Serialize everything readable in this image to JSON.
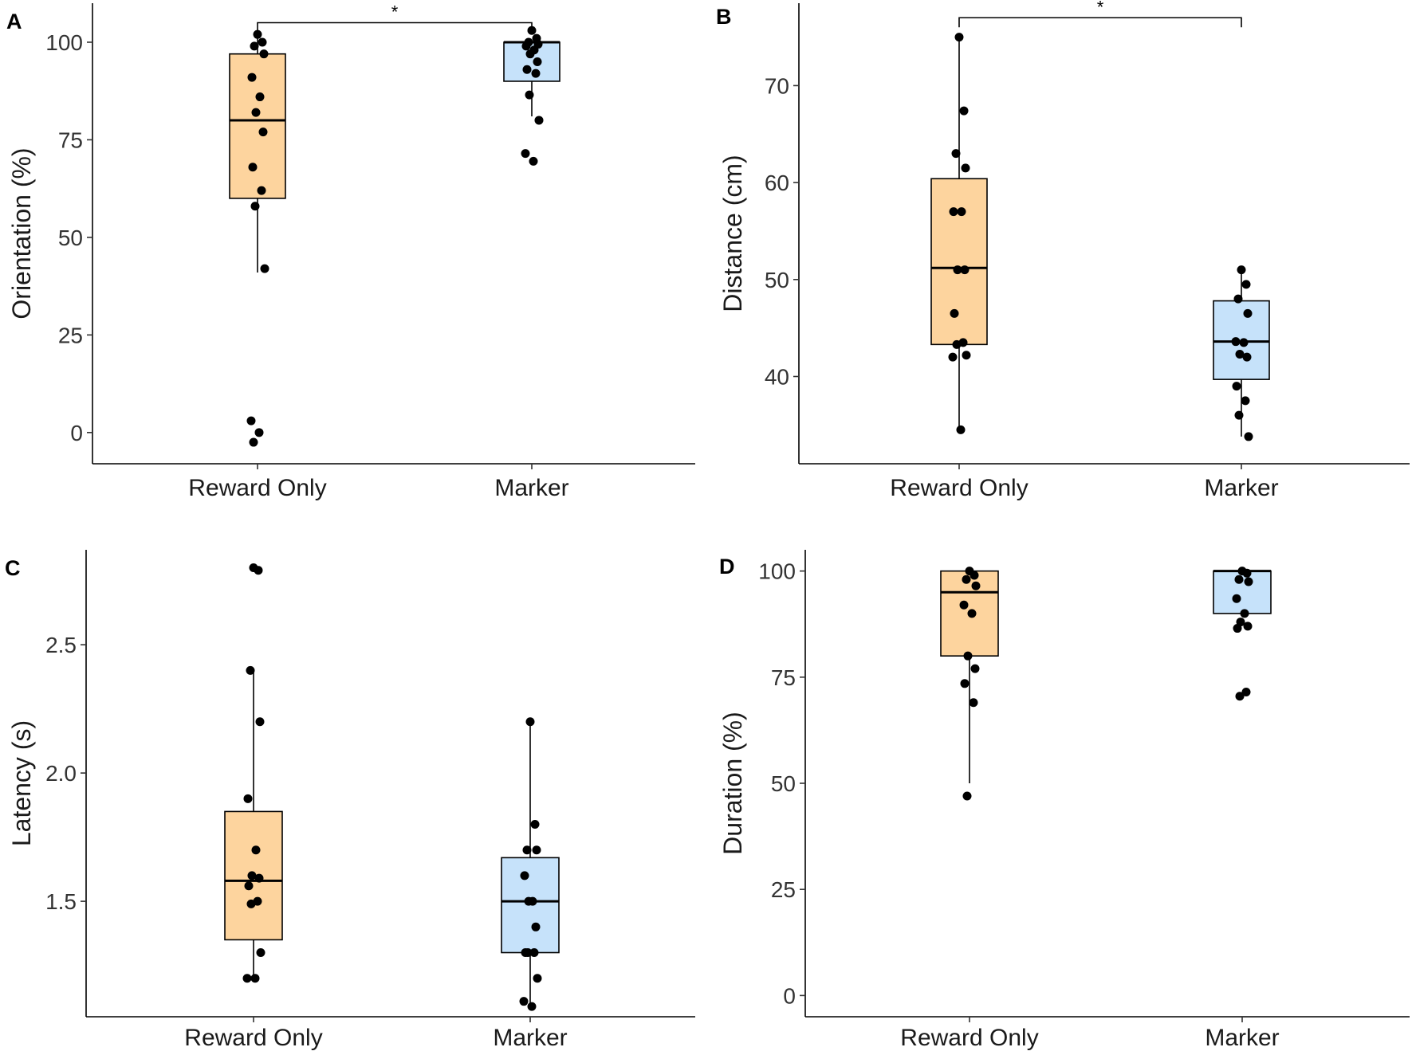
{
  "chart_data": [
    {
      "panel": "A",
      "type": "box",
      "xlabel": "",
      "ylabel": "Orientation (%)",
      "categories": [
        "Reward Only",
        "Marker"
      ],
      "ylim": [
        -8,
        110
      ],
      "yticks": [
        0,
        25,
        50,
        75,
        100
      ],
      "tick_labels": [
        "0",
        "25",
        "50",
        "75",
        "100"
      ],
      "colors": [
        "#FDD49E",
        "#C6E2FA"
      ],
      "series": [
        {
          "name": "Reward Only",
          "box": {
            "q1": 60,
            "median": 80,
            "q3": 97,
            "whisker_low": 41,
            "whisker_high": 103
          },
          "points": [
            102,
            100,
            99,
            97,
            91,
            86,
            82,
            77,
            68,
            62,
            58,
            42,
            3,
            0,
            -2.5
          ]
        },
        {
          "name": "Marker",
          "box": {
            "q1": 90,
            "median": 100,
            "q3": 100,
            "whisker_low": 81,
            "whisker_high": 100
          },
          "points": [
            103,
            101,
            100,
            99.5,
            99,
            98,
            97,
            95,
            93,
            92,
            86.5,
            80,
            71.5,
            69.5
          ]
        }
      ],
      "significance": {
        "label": "*",
        "y": 105
      }
    },
    {
      "panel": "B",
      "type": "box",
      "xlabel": "",
      "ylabel": "Distance (cm)",
      "categories": [
        "Reward Only",
        "Marker"
      ],
      "ylim": [
        31,
        78.5
      ],
      "yticks": [
        40,
        50,
        60,
        70
      ],
      "tick_labels": [
        "40",
        "50",
        "60",
        "70"
      ],
      "colors": [
        "#FDD49E",
        "#C6E2FA"
      ],
      "series": [
        {
          "name": "Reward Only",
          "box": {
            "q1": 43.3,
            "median": 51.2,
            "q3": 60.4,
            "whisker_low": 34.5,
            "whisker_high": 75
          },
          "points": [
            75,
            67.4,
            63,
            61.5,
            57,
            57,
            51,
            51,
            46.5,
            43.5,
            43.3,
            42.2,
            42,
            34.5
          ]
        },
        {
          "name": "Marker",
          "box": {
            "q1": 39.7,
            "median": 43.6,
            "q3": 47.8,
            "whisker_low": 33.8,
            "whisker_high": 51
          },
          "points": [
            51,
            49.5,
            48,
            46.5,
            43.6,
            43.5,
            42.3,
            42,
            39,
            37.5,
            36,
            33.8
          ]
        }
      ],
      "significance": {
        "label": "*",
        "y": 77
      }
    },
    {
      "panel": "C",
      "type": "box",
      "xlabel": "",
      "ylabel": "Latency (s)",
      "categories": [
        "Reward Only",
        "Marker"
      ],
      "ylim": [
        1.05,
        2.87
      ],
      "yticks": [
        1.5,
        2.0,
        2.5
      ],
      "tick_labels": [
        "1.5",
        "2.0",
        "2.5"
      ],
      "colors": [
        "#FDD49E",
        "#C6E2FA"
      ],
      "series": [
        {
          "name": "Reward Only",
          "box": {
            "q1": 1.35,
            "median": 1.58,
            "q3": 1.85,
            "whisker_low": 1.2,
            "whisker_high": 2.4
          },
          "points": [
            2.8,
            2.79,
            2.4,
            2.2,
            1.9,
            1.7,
            1.6,
            1.59,
            1.56,
            1.5,
            1.49,
            1.3,
            1.2,
            1.2
          ]
        },
        {
          "name": "Marker",
          "box": {
            "q1": 1.3,
            "median": 1.5,
            "q3": 1.67,
            "whisker_low": 1.1,
            "whisker_high": 2.2
          },
          "points": [
            2.2,
            1.8,
            1.7,
            1.7,
            1.6,
            1.5,
            1.5,
            1.4,
            1.3,
            1.3,
            1.3,
            1.2,
            1.11,
            1.09
          ]
        }
      ]
    },
    {
      "panel": "D",
      "type": "box",
      "xlabel": "",
      "ylabel": "Duration (%)",
      "categories": [
        "Reward Only",
        "Marker"
      ],
      "ylim": [
        -5,
        105
      ],
      "yticks": [
        0,
        25,
        50,
        75,
        100
      ],
      "tick_labels": [
        "0",
        "25",
        "50",
        "75",
        "100"
      ],
      "colors": [
        "#FDD49E",
        "#C6E2FA"
      ],
      "series": [
        {
          "name": "Reward Only",
          "box": {
            "q1": 80,
            "median": 95,
            "q3": 100,
            "whisker_low": 50,
            "whisker_high": 100
          },
          "points": [
            100,
            99,
            98,
            96.5,
            92,
            90,
            80,
            77,
            73.5,
            69,
            47
          ]
        },
        {
          "name": "Marker",
          "box": {
            "q1": 90,
            "median": 100,
            "q3": 100,
            "whisker_low": 90,
            "whisker_high": 100
          },
          "points": [
            100,
            99.5,
            98,
            97.5,
            93.5,
            90,
            88,
            87,
            86.5,
            71.5,
            70.5
          ]
        }
      ]
    }
  ]
}
